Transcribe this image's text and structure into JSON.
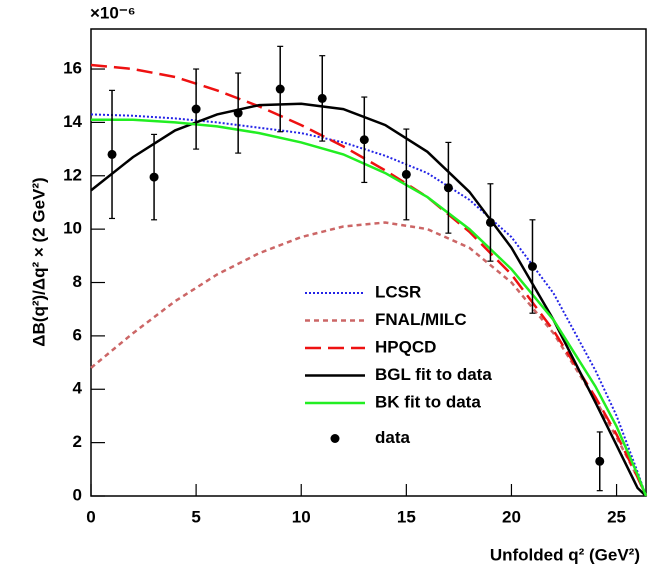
{
  "chart_data": {
    "type": "line",
    "multiplier": "×10⁻⁶",
    "y_label": "ΔB(q²)/Δq² × (2 GeV²)",
    "x_label": "Unfolded q² (GeV²)",
    "xlim": [
      0,
      26.4
    ],
    "ylim": [
      0,
      17.5
    ],
    "xticks": [
      0,
      5,
      10,
      15,
      20,
      25
    ],
    "yticks": [
      0,
      2,
      4,
      6,
      8,
      10,
      12,
      14,
      16
    ],
    "series": [
      {
        "name": "LCSR",
        "color": "#2323e6",
        "style": "dotted",
        "x": [
          0,
          2,
          4,
          6,
          8,
          10,
          12,
          14,
          16,
          18,
          20,
          22,
          24,
          25,
          26,
          26.4
        ],
        "values": [
          14.3,
          14.25,
          14.15,
          14.0,
          13.8,
          13.6,
          13.25,
          12.75,
          12.1,
          11.1,
          9.7,
          7.6,
          4.7,
          3.0,
          0.9,
          0
        ]
      },
      {
        "name": "FNAL/MILC",
        "color": "#cc6666",
        "style": "dashed",
        "x": [
          0,
          2,
          4,
          6,
          8,
          10,
          12,
          14,
          16,
          18,
          20,
          22,
          24,
          25,
          26,
          26.4
        ],
        "values": [
          4.8,
          6.1,
          7.3,
          8.3,
          9.1,
          9.7,
          10.1,
          10.25,
          10.0,
          9.3,
          8.0,
          6.1,
          3.6,
          2.2,
          0.7,
          0
        ]
      },
      {
        "name": "HPQCD",
        "color": "#ee1111",
        "style": "long-dashed",
        "x": [
          0,
          2,
          4,
          6,
          8,
          10,
          12,
          14,
          16,
          18,
          20,
          22,
          24,
          25,
          26,
          26.4
        ],
        "values": [
          16.15,
          16.0,
          15.7,
          15.2,
          14.6,
          13.9,
          13.1,
          12.2,
          11.2,
          9.9,
          8.3,
          6.2,
          3.7,
          2.3,
          0.7,
          0
        ]
      },
      {
        "name": "BGL fit to data",
        "color": "#000000",
        "style": "solid",
        "x": [
          0,
          2,
          4,
          6,
          8,
          10,
          12,
          14,
          16,
          18,
          20,
          22,
          24,
          25,
          26,
          26.4
        ],
        "values": [
          11.45,
          12.7,
          13.7,
          14.3,
          14.65,
          14.7,
          14.5,
          13.9,
          12.9,
          11.4,
          9.3,
          6.6,
          3.5,
          1.9,
          0.3,
          0
        ]
      },
      {
        "name": "BK fit to data",
        "color": "#22ee22",
        "style": "solid",
        "x": [
          0,
          2,
          4,
          6,
          8,
          10,
          12,
          14,
          16,
          18,
          20,
          22,
          24,
          25,
          26,
          26.4
        ],
        "values": [
          14.1,
          14.1,
          14.0,
          13.85,
          13.6,
          13.25,
          12.8,
          12.1,
          11.2,
          10.0,
          8.5,
          6.6,
          4.1,
          2.6,
          0.8,
          0
        ]
      },
      {
        "name": "data",
        "color": "#000000",
        "style": "points",
        "x": [
          1,
          3,
          5,
          7,
          9,
          11,
          13,
          15,
          17,
          19,
          21,
          24.2
        ],
        "values": [
          12.8,
          11.95,
          14.5,
          14.35,
          15.25,
          14.9,
          13.35,
          12.05,
          11.55,
          10.25,
          8.6,
          1.3
        ],
        "errors": [
          2.4,
          1.6,
          1.5,
          1.5,
          1.6,
          1.6,
          1.6,
          1.7,
          1.7,
          1.45,
          1.75,
          1.1
        ]
      }
    ]
  }
}
